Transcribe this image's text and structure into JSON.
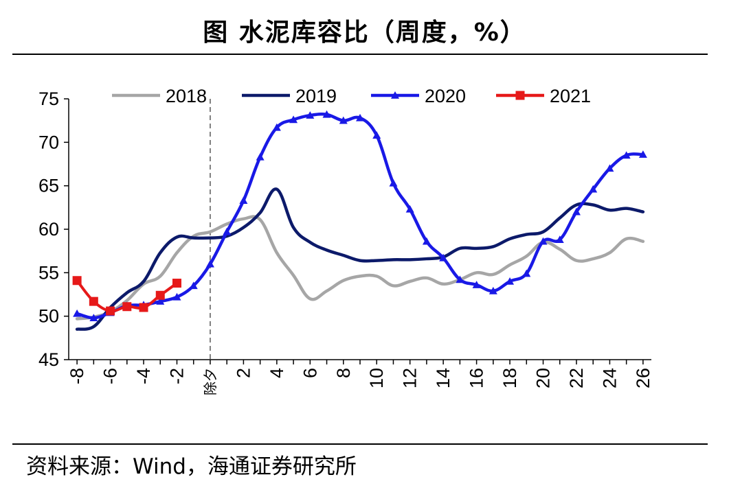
{
  "header": {
    "title": "图 水泥库容比（周度，%）"
  },
  "footer": {
    "source": "资料来源：Wind，海通证券研究所"
  },
  "chart_data": {
    "type": "line",
    "title": "图 水泥库容比（周度，%）",
    "xlabel": "",
    "ylabel": "",
    "ylim": [
      45,
      75
    ],
    "yticks": [
      45,
      50,
      55,
      60,
      65,
      70,
      75
    ],
    "xlim": [
      -8.5,
      26.5
    ],
    "xticks": [
      {
        "value": -8,
        "label": "-8"
      },
      {
        "value": -6,
        "label": "-6"
      },
      {
        "value": -4,
        "label": "-4"
      },
      {
        "value": -2,
        "label": "-2"
      },
      {
        "value": 0,
        "label": "除夕"
      },
      {
        "value": 2,
        "label": "2"
      },
      {
        "value": 4,
        "label": "4"
      },
      {
        "value": 6,
        "label": "6"
      },
      {
        "value": 8,
        "label": "8"
      },
      {
        "value": 10,
        "label": "10"
      },
      {
        "value": 12,
        "label": "12"
      },
      {
        "value": 14,
        "label": "14"
      },
      {
        "value": 16,
        "label": "16"
      },
      {
        "value": 18,
        "label": "18"
      },
      {
        "value": 20,
        "label": "20"
      },
      {
        "value": 22,
        "label": "22"
      },
      {
        "value": 24,
        "label": "24"
      },
      {
        "value": 26,
        "label": "26"
      }
    ],
    "reference_line": {
      "x": 0,
      "style": "dashed",
      "label": "除夕"
    },
    "legend_position": "top",
    "grid": false,
    "series": [
      {
        "name": "2018",
        "color": "#a6a6a6",
        "marker": "none",
        "x": [
          -8,
          -7,
          -6,
          -5,
          -4,
          -3,
          -2,
          -1,
          0,
          1,
          2,
          3,
          4,
          5,
          6,
          7,
          8,
          9,
          10,
          11,
          12,
          13,
          14,
          15,
          16,
          17,
          18,
          19,
          20,
          21,
          22,
          23,
          24,
          25,
          26
        ],
        "values": [
          49.7,
          49.9,
          50.5,
          51.8,
          53.7,
          54.6,
          57.3,
          59.2,
          59.7,
          60.6,
          61.2,
          61.1,
          57.3,
          54.7,
          52.0,
          52.9,
          54.1,
          54.6,
          54.6,
          53.5,
          54.0,
          54.4,
          53.7,
          54.2,
          55.0,
          54.8,
          55.9,
          56.9,
          58.5,
          57.7,
          56.4,
          56.6,
          57.3,
          58.9,
          58.6
        ]
      },
      {
        "name": "2019",
        "color": "#0c1a6a",
        "marker": "none",
        "x": [
          -8,
          -7,
          -6,
          -5,
          -4,
          -3,
          -2,
          -1,
          0,
          1,
          2,
          3,
          4,
          5,
          6,
          7,
          8,
          9,
          10,
          11,
          12,
          13,
          14,
          15,
          16,
          17,
          18,
          19,
          20,
          21,
          22,
          23,
          24,
          25,
          26
        ],
        "values": [
          48.5,
          48.8,
          51.0,
          52.7,
          54.0,
          57.3,
          59.1,
          59.0,
          59.0,
          59.2,
          60.2,
          61.9,
          64.6,
          60.2,
          58.5,
          57.6,
          57.0,
          56.4,
          56.4,
          56.5,
          56.5,
          56.6,
          56.8,
          57.8,
          57.8,
          58.0,
          58.9,
          59.4,
          59.7,
          61.3,
          62.8,
          62.8,
          62.2,
          62.4,
          62.0
        ]
      },
      {
        "name": "2020",
        "color": "#1919e6",
        "marker": "triangle",
        "x": [
          -8,
          -7,
          -6,
          -5,
          -4,
          -3,
          -2,
          -1,
          0,
          1,
          2,
          3,
          4,
          5,
          6,
          7,
          8,
          9,
          10,
          11,
          12,
          13,
          14,
          15,
          16,
          17,
          18,
          19,
          20,
          21,
          22,
          23,
          24,
          25,
          26
        ],
        "values": [
          50.3,
          49.8,
          50.4,
          51.2,
          51.3,
          51.7,
          52.2,
          53.5,
          56.0,
          59.7,
          63.3,
          68.3,
          71.7,
          72.6,
          73.1,
          73.2,
          72.5,
          72.8,
          70.8,
          65.3,
          62.3,
          58.6,
          56.7,
          54.2,
          53.6,
          52.9,
          54.0,
          54.9,
          58.6,
          58.8,
          62.0,
          64.6,
          67.0,
          68.5,
          68.6
        ]
      },
      {
        "name": "2021",
        "color": "#e61919",
        "marker": "square",
        "x": [
          -8,
          -7,
          -6,
          -5,
          -4,
          -3,
          -2
        ],
        "values": [
          54.1,
          51.7,
          50.6,
          51.1,
          51.0,
          52.4,
          53.8
        ]
      }
    ]
  }
}
